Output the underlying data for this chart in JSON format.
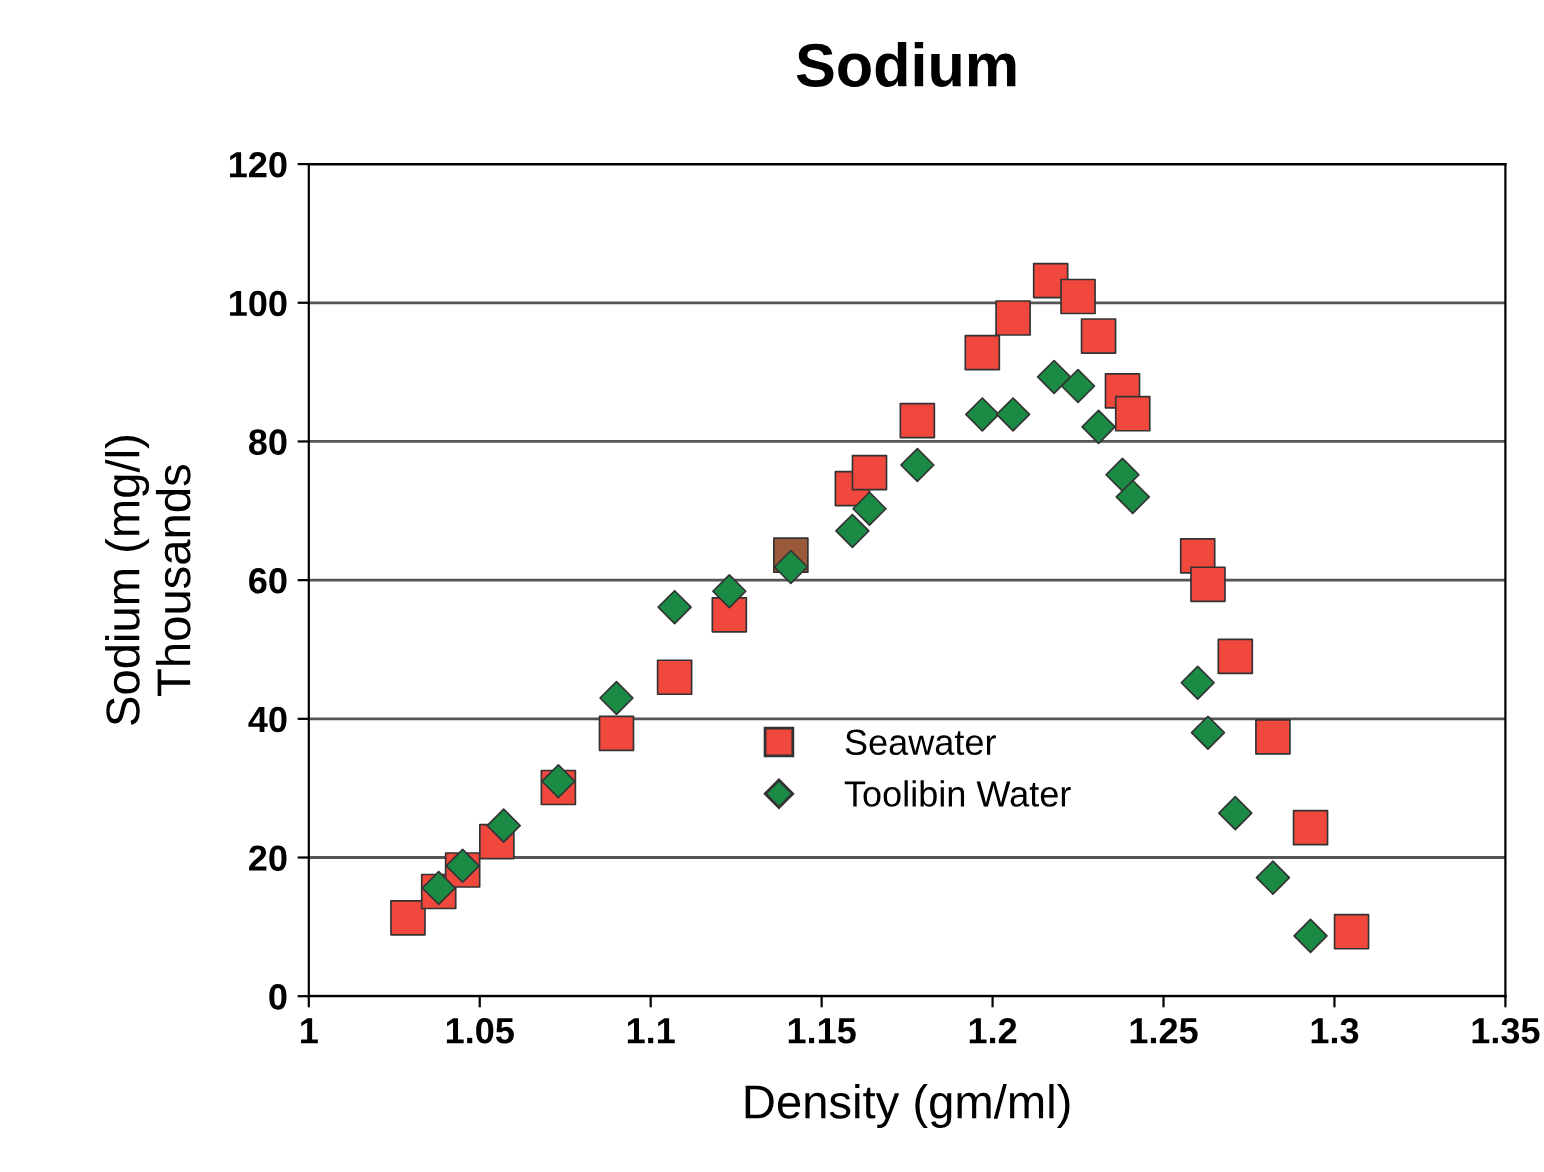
{
  "chart_data": {
    "type": "scatter",
    "title": "Sodium",
    "xlabel": "Density (gm/ml)",
    "ylabel": "Sodium (mg/l)\nThousands",
    "xlim": [
      1,
      1.35
    ],
    "xticks": [
      1,
      1.05,
      1.1,
      1.15,
      1.2,
      1.25,
      1.3,
      1.35
    ],
    "ylim": [
      0,
      120
    ],
    "yticks": [
      0,
      20,
      40,
      60,
      80,
      100,
      120
    ],
    "grid": "y",
    "legend": "bottom",
    "series": [
      {
        "name": "Seawater",
        "color": "#f0483c",
        "marker": "square",
        "x": [
          1.029,
          1.038,
          1.045,
          1.055,
          1.073,
          1.09,
          1.107,
          1.123,
          1.141,
          1.159,
          1.164,
          1.178,
          1.197,
          1.206,
          1.217,
          1.225,
          1.231,
          1.238,
          1.241,
          1.26,
          1.263,
          1.271,
          1.282,
          1.293,
          1.305
        ],
        "values": [
          11.3,
          15.1,
          18.2,
          22.3,
          30.1,
          37.9,
          46,
          55,
          63.6,
          73.2,
          75.5,
          83,
          92.8,
          97.8,
          103.2,
          100.9,
          95.2,
          87.3,
          84,
          63.5,
          59.4,
          49,
          37.4,
          24.3,
          9.3
        ],
        "colors": [
          "#f0483c",
          "#f0483c",
          "#f0483c",
          "#f0483c",
          "#f0483c",
          "#f0483c",
          "#f0483c",
          "#f0483c",
          "#9a5a3a",
          "#f0483c",
          "#f0483c",
          "#f0483c",
          "#f0483c",
          "#f0483c",
          "#f0483c",
          "#f0483c",
          "#f0483c",
          "#f0483c",
          "#f0483c",
          "#f0483c",
          "#f0483c",
          "#f0483c",
          "#f0483c",
          "#f0483c",
          "#f0483c"
        ]
      },
      {
        "name": "Toolibin Water",
        "color": "#1a8a45",
        "marker": "diamond",
        "x": [
          1.038,
          1.045,
          1.057,
          1.073,
          1.09,
          1.107,
          1.123,
          1.141,
          1.159,
          1.164,
          1.178,
          1.197,
          1.206,
          1.218,
          1.225,
          1.231,
          1.238,
          1.241,
          1.26,
          1.263,
          1.271,
          1.282,
          1.293
        ],
        "values": [
          15.6,
          18.8,
          24.6,
          31,
          43,
          56.1,
          58.4,
          61.9,
          67.1,
          70.3,
          76.6,
          83.9,
          83.9,
          89.3,
          88,
          82.1,
          75.2,
          72,
          45.2,
          38,
          26.4,
          17.1,
          8.7
        ]
      }
    ]
  }
}
